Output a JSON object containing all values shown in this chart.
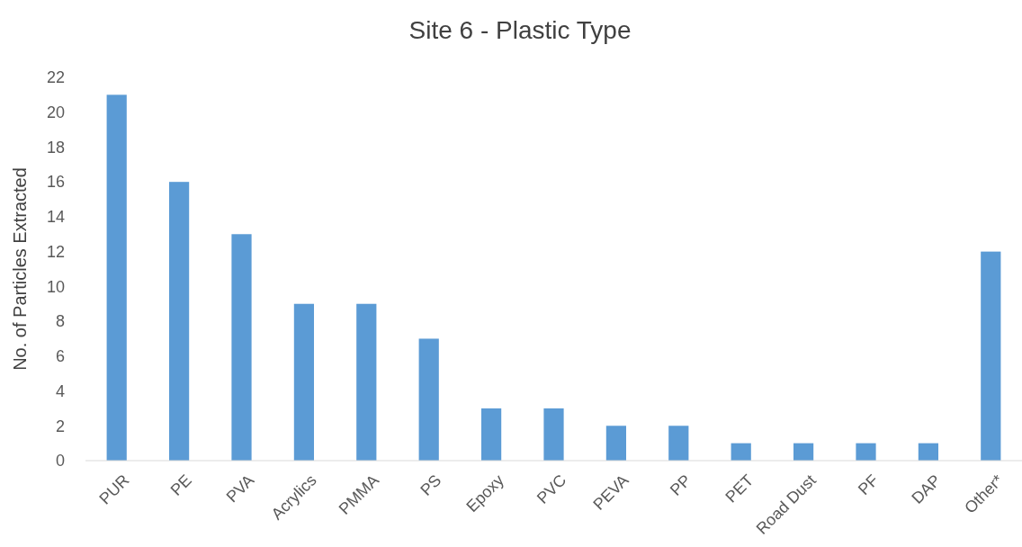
{
  "chart_data": {
    "type": "bar",
    "title": "Site 6 - Plastic Type",
    "ylabel": "No. of Particles Extracted",
    "categories": [
      "PUR",
      "PE",
      "PVA",
      "Acrylics",
      "PMMA",
      "PS",
      "Epoxy",
      "PVC",
      "PEVA",
      "PP",
      "PET",
      "Road Dust",
      "PF",
      "DAP",
      "Other*"
    ],
    "values": [
      21,
      16,
      13,
      9,
      9,
      7,
      3,
      3,
      2,
      2,
      1,
      1,
      1,
      1,
      12
    ],
    "color": "#5b9bd5",
    "ylim": [
      0,
      22
    ],
    "yticks": [
      0,
      2,
      4,
      6,
      8,
      10,
      12,
      14,
      16,
      18,
      20,
      22
    ],
    "grid": false
  }
}
